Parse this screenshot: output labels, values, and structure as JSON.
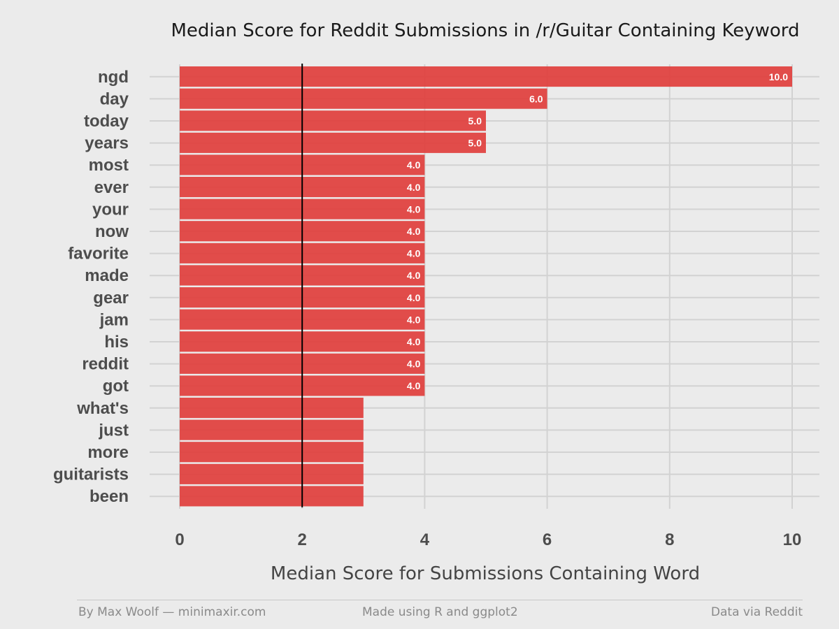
{
  "chart_data": {
    "type": "bar",
    "orientation": "horizontal",
    "title": "Median Score for Reddit Submissions in /r/Guitar Containing Keyword",
    "xlabel": "Median Score for Submissions Containing Word",
    "ylabel": "",
    "xlim": [
      0,
      10.3
    ],
    "x_ticks": [
      "0",
      "2",
      "4",
      "6",
      "8",
      "10"
    ],
    "reference_line": 2,
    "grid": true,
    "bar_color": "#e0403d",
    "categories": [
      "ngd",
      "day",
      "today",
      "years",
      "most",
      "ever",
      "your",
      "now",
      "favorite",
      "made",
      "gear",
      "jam",
      "his",
      "reddit",
      "got",
      "what's",
      "just",
      "more",
      "guitarists",
      "been"
    ],
    "values": [
      10,
      6,
      5,
      5,
      4,
      4,
      4,
      4,
      4,
      4,
      4,
      4,
      4,
      4,
      4,
      3,
      3,
      3,
      3,
      3
    ],
    "data_labels": [
      "10.0",
      "6.0",
      "5.0",
      "5.0",
      "4.0",
      "4.0",
      "4.0",
      "4.0",
      "4.0",
      "4.0",
      "4.0",
      "4.0",
      "4.0",
      "4.0",
      "4.0",
      "",
      "",
      "",
      "",
      ""
    ]
  },
  "footer": {
    "left": "By Max Woolf — minimaxir.com",
    "center": "Made using R and ggplot2",
    "right": "Data via Reddit"
  }
}
